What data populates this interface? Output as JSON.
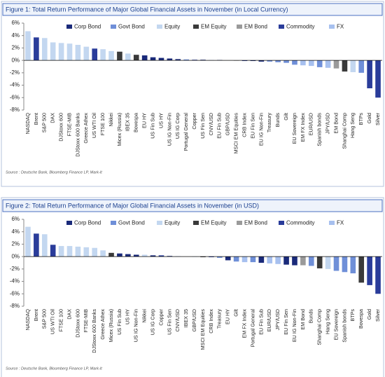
{
  "chart_data": [
    {
      "type": "bar",
      "title": "Figure 1: Total Return Performance of Major Global Financial Assets in November (in Local Currency)",
      "source": "Source : Deutsche Bank, Bloomberg Finance LP, Mark-It",
      "legend": [
        {
          "name": "Corp Bond",
          "color": "#1a2a7a"
        },
        {
          "name": "Govt Bond",
          "color": "#6f8fd8"
        },
        {
          "name": "Equity",
          "color": "#c3d7f0"
        },
        {
          "name": "EM Equity",
          "color": "#3a3a3a"
        },
        {
          "name": "EM Bond",
          "color": "#9a9a9a"
        },
        {
          "name": "Commodity",
          "color": "#2a3c9a"
        },
        {
          "name": "FX",
          "color": "#a7c0ef"
        }
      ],
      "categories": [
        "NASDAQ",
        "Brent",
        "S&P 500",
        "DAX",
        "DJStoxx 600",
        "FTSE-MIB",
        "DJStoxx 600 Banks",
        "Greece Athex",
        "US WTI Oil",
        "FTSE 100",
        "Nikkei",
        "Micex (Russia)",
        "IBEX 35",
        "Bovespa",
        "EU HY",
        "US Fin Sub",
        "US HY",
        "US IG Non-Fin",
        "US IG Corp",
        "Portugal General",
        "Copper",
        "US Fin Sen",
        "CNY/USD",
        "EU Fin Sub",
        "GBP/USD",
        "MSCI EM Equities",
        "CRB Index",
        "EU Fin Sen",
        "EU IG Non-Fin",
        "Treasury",
        "Bunds",
        "Gilt",
        "EU Sovereign",
        "EM FX Index",
        "EUR/USD",
        "Spanish bonds",
        "JPY/USD",
        "EM Bond",
        "Shanghai Comp",
        "Hang Seng",
        "BTPs",
        "Gold",
        "Silver"
      ],
      "values": [
        4.7,
        3.7,
        3.6,
        2.9,
        2.8,
        2.7,
        2.5,
        2.2,
        1.9,
        1.8,
        1.5,
        1.4,
        1.1,
        0.9,
        0.8,
        0.5,
        0.4,
        0.3,
        0.2,
        0.15,
        0.1,
        0.1,
        0.05,
        0.05,
        0.0,
        -0.05,
        -0.1,
        -0.1,
        -0.2,
        -0.2,
        -0.3,
        -0.4,
        -0.7,
        -0.8,
        -0.9,
        -1.1,
        -1.2,
        -1.3,
        -1.8,
        -1.9,
        -2.0,
        -4.5,
        -6.0
      ],
      "colors": [
        "#c3d7f0",
        "#2a3c9a",
        "#c3d7f0",
        "#c3d7f0",
        "#c3d7f0",
        "#c3d7f0",
        "#c3d7f0",
        "#c3d7f0",
        "#2a3c9a",
        "#c3d7f0",
        "#c3d7f0",
        "#3a3a3a",
        "#c3d7f0",
        "#3a3a3a",
        "#1a2a7a",
        "#1a2a7a",
        "#1a2a7a",
        "#1a2a7a",
        "#1a2a7a",
        "#6f8fd8",
        "#2a3c9a",
        "#1a2a7a",
        "#a7c0ef",
        "#1a2a7a",
        "#a7c0ef",
        "#3a3a3a",
        "#2a3c9a",
        "#1a2a7a",
        "#1a2a7a",
        "#6f8fd8",
        "#6f8fd8",
        "#6f8fd8",
        "#6f8fd8",
        "#a7c0ef",
        "#a7c0ef",
        "#6f8fd8",
        "#a7c0ef",
        "#9a9a9a",
        "#3a3a3a",
        "#c3d7f0",
        "#6f8fd8",
        "#2a3c9a",
        "#2a3c9a"
      ],
      "ylim": [
        -8,
        6
      ],
      "yticks": [
        {
          "value": -8,
          "label": "-8%"
        },
        {
          "value": -6,
          "label": "-6%"
        },
        {
          "value": -4,
          "label": "-4%"
        },
        {
          "value": -2,
          "label": "-2%"
        },
        {
          "value": 0,
          "label": "0%"
        },
        {
          "value": 2,
          "label": "2%"
        },
        {
          "value": 4,
          "label": "4%"
        },
        {
          "value": 6,
          "label": "6%"
        }
      ]
    },
    {
      "type": "bar",
      "title": "Figure 2: Total Return Performance of Major Global Financial Assets in November (in USD)",
      "source": "Source : Deutsche Bank, Bloomberg Finance LP, Mark-It",
      "legend": [
        {
          "name": "Corp Bond",
          "color": "#1a2a7a"
        },
        {
          "name": "Govt Bond",
          "color": "#6f8fd8"
        },
        {
          "name": "Equity",
          "color": "#c3d7f0"
        },
        {
          "name": "EM Equity",
          "color": "#3a3a3a"
        },
        {
          "name": "EM Bond",
          "color": "#9a9a9a"
        },
        {
          "name": "Commodity",
          "color": "#2a3c9a"
        },
        {
          "name": "FX",
          "color": "#a7c0ef"
        }
      ],
      "categories": [
        "NASDAQ",
        "Brent",
        "S&P 500",
        "US WTI Oil",
        "FTSE 100",
        "DAX",
        "DJStoxx 600",
        "FTSE-MIB",
        "DJStoxx 600 Banks",
        "Greece Athex",
        "Micex (Russia)",
        "US Fin Sub",
        "US HY",
        "US IG Non-Fin",
        "Nikkei",
        "US IG Corp",
        "Copper",
        "US Fin Sen",
        "CNY/USD",
        "IBEX 35",
        "GBP/USD",
        "MSCI EM Equities",
        "CRB Index",
        "Treasury",
        "EU HY",
        "Gilt",
        "EM FX Index",
        "Portugal General",
        "EU Fin Sub",
        "EUR/USD",
        "JPY/USD",
        "EU Fin Sen",
        "EU IG Non-Fin",
        "EM Bond",
        "Bunds",
        "Shanghai Comp",
        "Hang Seng",
        "EU Sovereign",
        "Spanish bonds",
        "BTPs",
        "Bovespa",
        "Gold",
        "Silver"
      ],
      "values": [
        4.8,
        3.7,
        3.6,
        1.9,
        1.7,
        1.7,
        1.6,
        1.5,
        1.4,
        1.0,
        0.6,
        0.5,
        0.4,
        0.3,
        0.3,
        0.2,
        0.2,
        0.1,
        0.05,
        0.0,
        -0.05,
        -0.1,
        -0.1,
        -0.2,
        -0.6,
        -0.8,
        -0.9,
        -0.9,
        -1.0,
        -1.1,
        -1.2,
        -1.3,
        -1.4,
        -1.4,
        -1.5,
        -1.9,
        -2.0,
        -2.3,
        -2.5,
        -2.7,
        -4.2,
        -4.6,
        -6.0
      ],
      "colors": [
        "#c3d7f0",
        "#2a3c9a",
        "#c3d7f0",
        "#2a3c9a",
        "#c3d7f0",
        "#c3d7f0",
        "#c3d7f0",
        "#c3d7f0",
        "#c3d7f0",
        "#c3d7f0",
        "#3a3a3a",
        "#1a2a7a",
        "#1a2a7a",
        "#1a2a7a",
        "#c3d7f0",
        "#1a2a7a",
        "#2a3c9a",
        "#1a2a7a",
        "#a7c0ef",
        "#c3d7f0",
        "#a7c0ef",
        "#3a3a3a",
        "#2a3c9a",
        "#6f8fd8",
        "#1a2a7a",
        "#6f8fd8",
        "#a7c0ef",
        "#6f8fd8",
        "#1a2a7a",
        "#a7c0ef",
        "#a7c0ef",
        "#1a2a7a",
        "#1a2a7a",
        "#9a9a9a",
        "#6f8fd8",
        "#3a3a3a",
        "#c3d7f0",
        "#6f8fd8",
        "#6f8fd8",
        "#6f8fd8",
        "#3a3a3a",
        "#2a3c9a",
        "#2a3c9a"
      ],
      "ylim": [
        -8,
        6
      ],
      "yticks": [
        {
          "value": -8,
          "label": "-8%"
        },
        {
          "value": -6,
          "label": "-6%"
        },
        {
          "value": -4,
          "label": "-4%"
        },
        {
          "value": -2,
          "label": "-2%"
        },
        {
          "value": 0,
          "label": "0%"
        },
        {
          "value": 2,
          "label": "2%"
        },
        {
          "value": 4,
          "label": "4%"
        },
        {
          "value": 6,
          "label": "6%"
        }
      ]
    }
  ]
}
